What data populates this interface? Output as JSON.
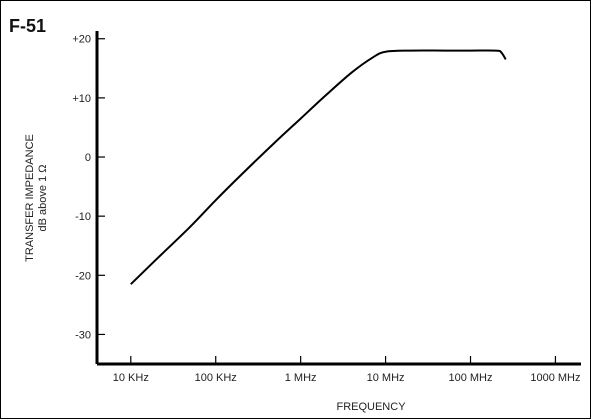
{
  "chart_data": {
    "type": "line",
    "figure_id": "F-51",
    "title": "",
    "xlabel": "FREQUENCY",
    "ylabel_line1": "TRANSFER IMPEDANCE",
    "ylabel_line2": "dB above 1 Ω",
    "x_scale": "log",
    "x_ticks": [
      {
        "label": "10 KHz",
        "hz": 10000
      },
      {
        "label": "100 KHz",
        "hz": 100000
      },
      {
        "label": "1 MHz",
        "hz": 1000000
      },
      {
        "label": "10 MHz",
        "hz": 10000000
      },
      {
        "label": "100 MHz",
        "hz": 100000000
      },
      {
        "label": "1000 MHz",
        "hz": 1000000000
      }
    ],
    "y_ticks": [
      {
        "label": "+20",
        "value": 20
      },
      {
        "label": "+10",
        "value": 10
      },
      {
        "label": "0",
        "value": 0
      },
      {
        "label": "-10",
        "value": -10
      },
      {
        "label": "-20",
        "value": -20
      },
      {
        "label": "-30",
        "value": -30
      }
    ],
    "xlim": [
      4000,
      2000000000
    ],
    "ylim": [
      -35,
      23
    ],
    "grid": false,
    "series": [
      {
        "color": "#000000",
        "points": [
          {
            "x": 10000,
            "y": -21.5
          },
          {
            "x": 20000,
            "y": -17.3
          },
          {
            "x": 50000,
            "y": -11.8
          },
          {
            "x": 100000,
            "y": -7.3
          },
          {
            "x": 200000,
            "y": -3.0
          },
          {
            "x": 500000,
            "y": 2.5
          },
          {
            "x": 1000000,
            "y": 6.5
          },
          {
            "x": 2000000,
            "y": 10.5
          },
          {
            "x": 4000000,
            "y": 14.3
          },
          {
            "x": 7000000,
            "y": 16.8
          },
          {
            "x": 10000000,
            "y": 17.8
          },
          {
            "x": 20000000,
            "y": 18.0
          },
          {
            "x": 50000000,
            "y": 18.0
          },
          {
            "x": 100000000,
            "y": 18.0
          },
          {
            "x": 200000000,
            "y": 18.0
          },
          {
            "x": 230000000,
            "y": 17.7
          },
          {
            "x": 260000000,
            "y": 16.5
          }
        ]
      }
    ]
  }
}
